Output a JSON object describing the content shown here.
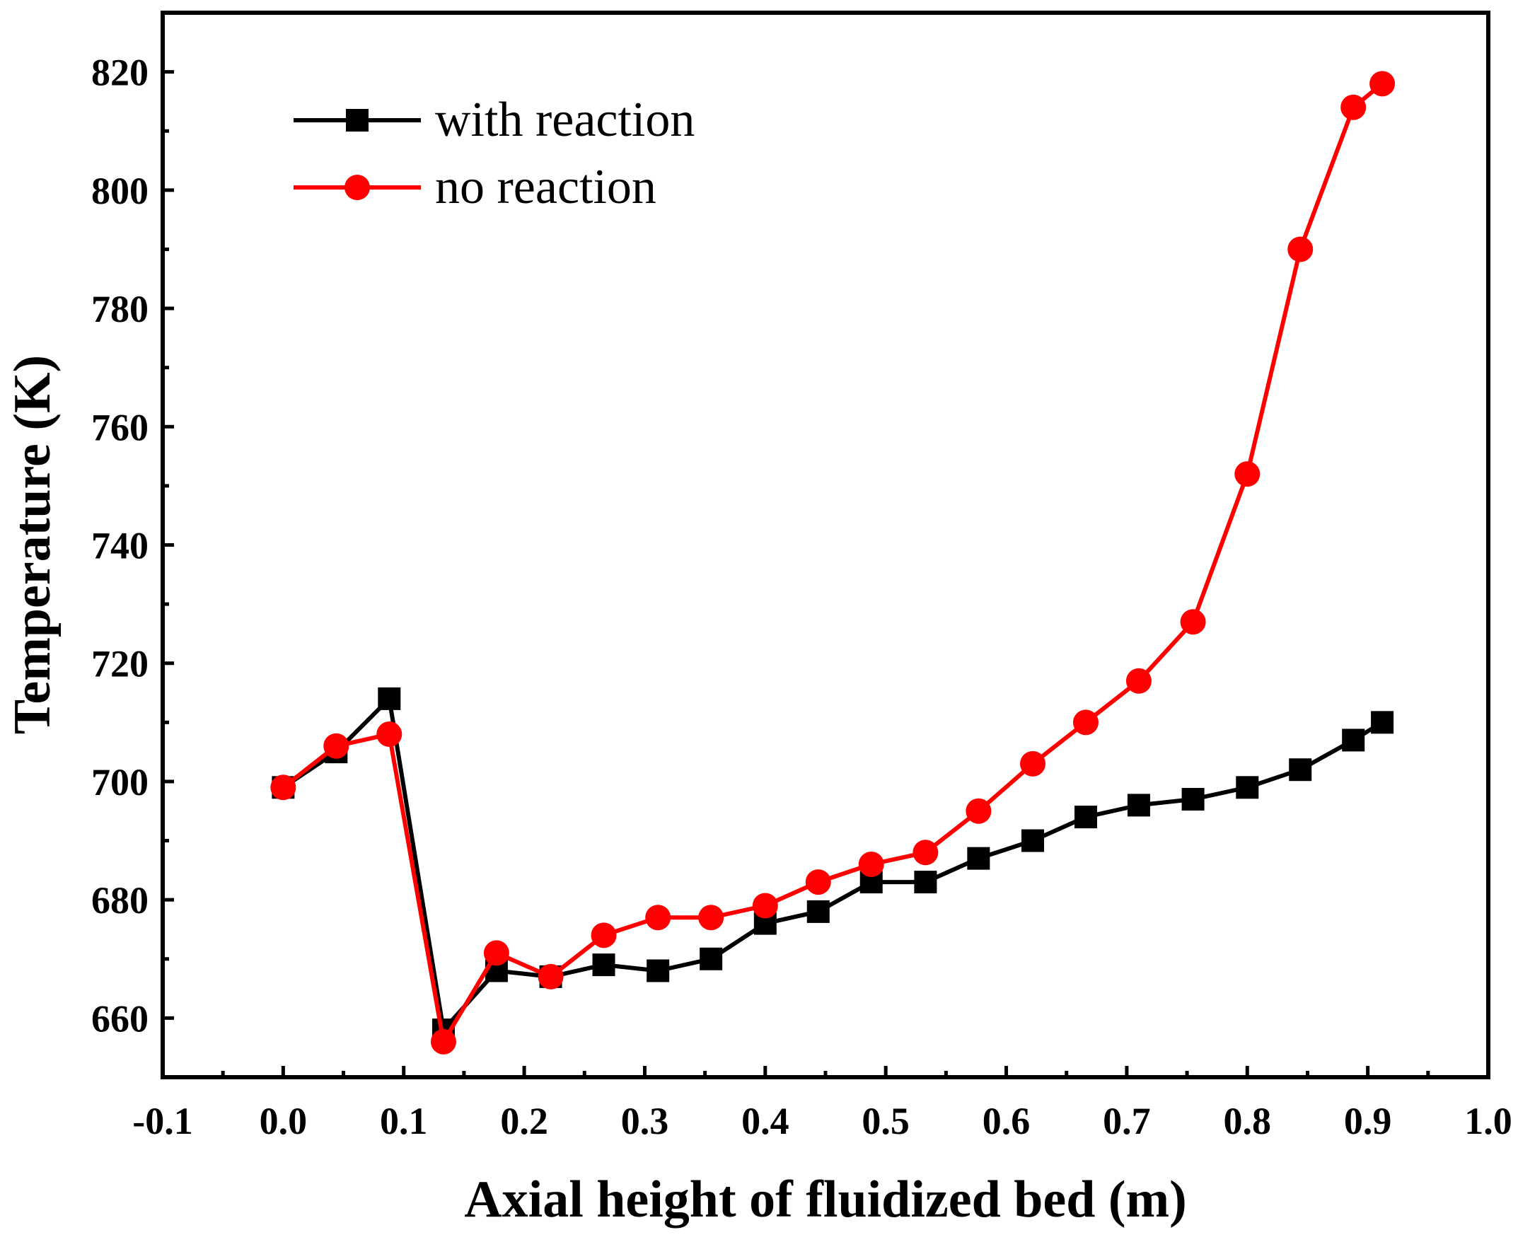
{
  "chart_data": {
    "type": "line",
    "title": "",
    "xlabel": "Axial height of fluidized bed (m)",
    "ylabel": "Temperature (K)",
    "xlim": [
      -0.1,
      1.0
    ],
    "ylim": [
      650,
      830
    ],
    "xticks": [
      "-0.1",
      "0.0",
      "0.1",
      "0.2",
      "0.3",
      "0.4",
      "0.5",
      "0.6",
      "0.7",
      "0.8",
      "0.9",
      "1.0"
    ],
    "yticks": [
      "660",
      "680",
      "700",
      "720",
      "740",
      "760",
      "780",
      "800",
      "820"
    ],
    "grid": false,
    "legend_position": "top-left",
    "series": [
      {
        "name": "with reaction",
        "color": "#000000",
        "marker": "square",
        "x": [
          0.0,
          0.044,
          0.088,
          0.133,
          0.177,
          0.222,
          0.266,
          0.311,
          0.355,
          0.4,
          0.444,
          0.488,
          0.533,
          0.577,
          0.622,
          0.666,
          0.71,
          0.755,
          0.8,
          0.844,
          0.888,
          0.912
        ],
        "y": [
          699,
          705,
          714,
          658,
          668,
          667,
          669,
          668,
          670,
          676,
          678,
          683,
          683,
          687,
          690,
          694,
          696,
          697,
          699,
          702,
          707,
          710
        ]
      },
      {
        "name": "no reaction",
        "color": "#ff0000",
        "marker": "circle",
        "x": [
          0.0,
          0.044,
          0.088,
          0.133,
          0.177,
          0.222,
          0.266,
          0.311,
          0.355,
          0.4,
          0.444,
          0.488,
          0.533,
          0.577,
          0.622,
          0.666,
          0.71,
          0.755,
          0.8,
          0.844,
          0.888,
          0.912
        ],
        "y": [
          699,
          706,
          708,
          656,
          671,
          667,
          674,
          677,
          677,
          679,
          683,
          686,
          688,
          695,
          703,
          710,
          717,
          727,
          752,
          790,
          814,
          818
        ]
      }
    ]
  }
}
